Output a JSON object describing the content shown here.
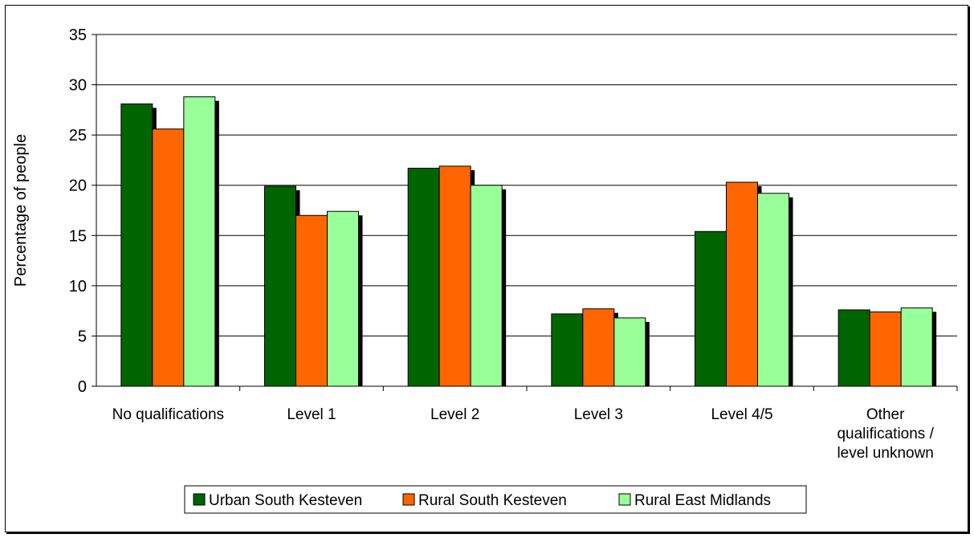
{
  "chart_data": {
    "type": "bar",
    "title": "",
    "xlabel": "",
    "ylabel": "Percentage of people",
    "ylim": [
      0,
      35
    ],
    "yticks": [
      0,
      5,
      10,
      15,
      20,
      25,
      30,
      35
    ],
    "grid": true,
    "legend_position": "bottom",
    "categories": [
      [
        "No qualifications"
      ],
      [
        "Level 1"
      ],
      [
        "Level 2"
      ],
      [
        "Level 3"
      ],
      [
        "Level 4/5"
      ],
      [
        "Other",
        "qualifications /",
        "level unknown"
      ]
    ],
    "series": [
      {
        "name": "Urban South Kesteven",
        "color": "#006400",
        "values": [
          28.1,
          19.9,
          21.7,
          7.2,
          15.4,
          7.6
        ]
      },
      {
        "name": "Rural South Kesteven",
        "color": "#ff6600",
        "values": [
          25.6,
          17.0,
          21.9,
          7.7,
          20.3,
          7.4
        ]
      },
      {
        "name": "Rural East Midlands",
        "color": "#99ff99",
        "values": [
          28.8,
          17.4,
          20.0,
          6.8,
          19.2,
          7.8
        ]
      }
    ]
  }
}
